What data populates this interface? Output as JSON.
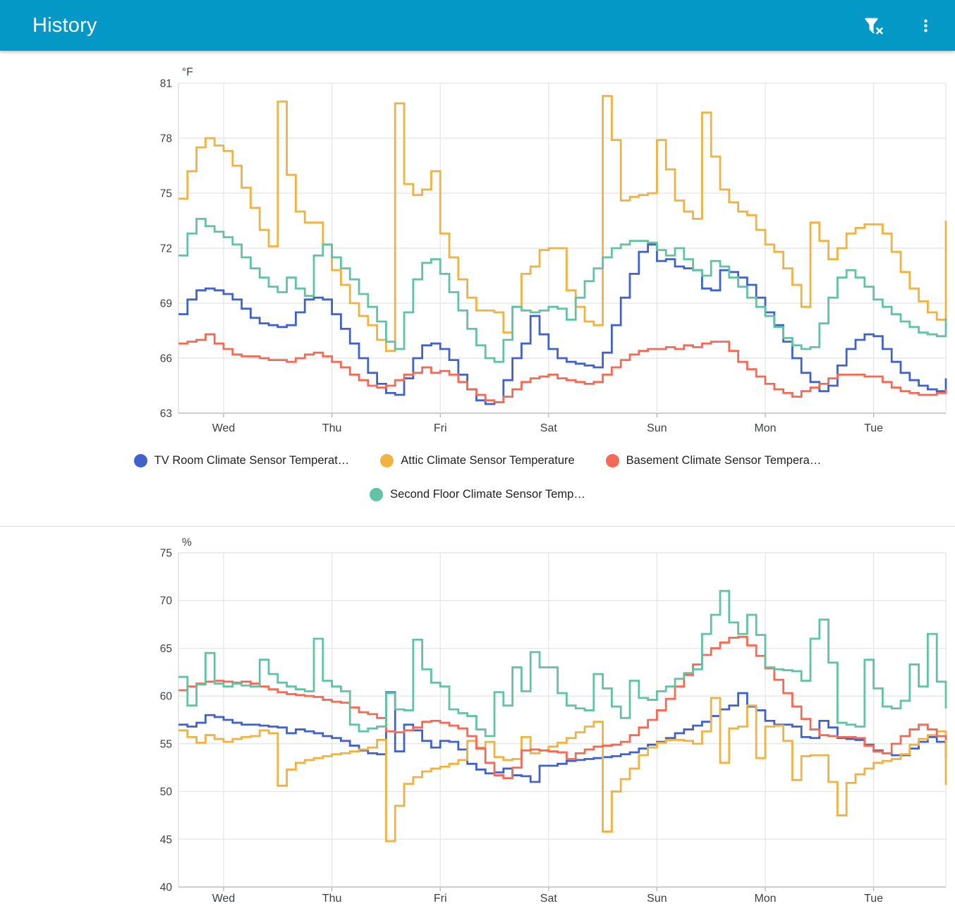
{
  "header": {
    "title": "History",
    "filter_icon": "filter-remove",
    "menu_icon": "dots-vertical",
    "bar_color": "#0398c5"
  },
  "chart_data": [
    {
      "type": "line",
      "line_style": "stepped",
      "grid": true,
      "legend_position": "bottom",
      "unit": "°F",
      "ylim": [
        63,
        81
      ],
      "y_ticks": [
        81,
        78,
        75,
        72,
        69,
        66,
        63
      ],
      "x_labels": [
        "Wed",
        "Thu",
        "Fri",
        "Sat",
        "Sun",
        "Mon",
        "Tue"
      ],
      "x_span_hours": 170,
      "day_label_hours": [
        10,
        34,
        58,
        82,
        106,
        130,
        154
      ],
      "step_hours": 2,
      "series": [
        {
          "name": "TV Room Climate Sensor Temperat…",
          "color": "#4163c9",
          "values": [
            68.4,
            69.2,
            69.7,
            69.8,
            69.7,
            69.5,
            69.2,
            68.7,
            68.2,
            67.9,
            67.8,
            67.7,
            67.8,
            68.5,
            69.2,
            69.3,
            69.2,
            68.4,
            67.6,
            66.8,
            66.0,
            65.2,
            64.6,
            64.1,
            64.0,
            64.9,
            66.0,
            66.7,
            66.8,
            66.5,
            65.9,
            65.1,
            64.3,
            63.7,
            63.5,
            63.6,
            64.8,
            66.0,
            66.8,
            68.3,
            67.3,
            66.5,
            66.0,
            65.8,
            65.7,
            65.6,
            65.5,
            66.3,
            67.8,
            69.3,
            70.6,
            71.8,
            72.2,
            71.3,
            71.4,
            71.0,
            70.9,
            70.8,
            69.8,
            69.7,
            70.8,
            70.7,
            70.4,
            70.0,
            69.3,
            68.5,
            67.8,
            66.9,
            66.0,
            65.2,
            64.7,
            64.2,
            64.5,
            65.6,
            66.5,
            67.0,
            67.3,
            67.2,
            66.5,
            65.8,
            65.2,
            64.8,
            64.5,
            64.3,
            64.2,
            64.9
          ]
        },
        {
          "name": "Attic Climate Sensor Temperature",
          "color": "#f0b342",
          "values": [
            74.7,
            76.2,
            77.5,
            78.0,
            77.6,
            77.3,
            76.5,
            75.3,
            74.2,
            73.0,
            72.1,
            80.0,
            76.0,
            74.0,
            73.4,
            73.4,
            72.2,
            70.8,
            70.0,
            69.0,
            68.3,
            67.8,
            67.0,
            66.4,
            79.9,
            75.5,
            74.9,
            75.2,
            76.2,
            72.8,
            71.5,
            70.3,
            69.3,
            68.6,
            68.6,
            68.5,
            67.4,
            68.8,
            70.6,
            71.0,
            71.9,
            72.0,
            72.0,
            69.7,
            68.8,
            68.0,
            67.8,
            80.3,
            77.9,
            74.6,
            74.8,
            74.9,
            75.0,
            77.9,
            76.3,
            74.6,
            74.0,
            73.6,
            79.4,
            77.0,
            75.2,
            74.5,
            74.0,
            73.8,
            73.0,
            72.2,
            71.8,
            70.9,
            70.0,
            68.8,
            73.4,
            72.4,
            71.4,
            72.0,
            72.8,
            73.1,
            73.3,
            73.3,
            72.8,
            71.8,
            70.7,
            69.8,
            69.1,
            68.5,
            68.1,
            73.5
          ]
        },
        {
          "name": "Basement Climate Sensor Tempera…",
          "color": "#f46a57",
          "values": [
            66.8,
            66.9,
            67.0,
            67.3,
            66.8,
            66.5,
            66.2,
            66.1,
            66.1,
            66.0,
            65.9,
            65.9,
            65.8,
            66.0,
            66.2,
            66.3,
            66.1,
            65.8,
            65.5,
            65.1,
            64.8,
            64.5,
            64.4,
            64.5,
            64.8,
            65.1,
            65.2,
            65.5,
            65.2,
            65.3,
            65.1,
            64.7,
            64.3,
            64.0,
            63.7,
            63.6,
            63.9,
            64.3,
            64.7,
            64.9,
            65.0,
            65.1,
            64.9,
            64.8,
            64.7,
            64.6,
            64.7,
            65.1,
            65.5,
            65.9,
            66.2,
            66.4,
            66.5,
            66.5,
            66.6,
            66.5,
            66.7,
            66.6,
            66.8,
            66.9,
            66.9,
            66.4,
            65.8,
            65.4,
            65.0,
            64.6,
            64.3,
            64.1,
            63.9,
            64.2,
            64.4,
            64.6,
            64.9,
            65.1,
            65.1,
            65.1,
            65.0,
            65.0,
            64.7,
            64.4,
            64.2,
            64.1,
            64.0,
            64.0,
            64.1,
            64.3
          ]
        },
        {
          "name": "Second Floor Climate Sensor Temp…",
          "color": "#61c3a3",
          "values": [
            71.6,
            72.8,
            73.6,
            73.2,
            72.9,
            72.6,
            72.2,
            71.5,
            70.9,
            70.4,
            69.9,
            69.6,
            70.4,
            69.8,
            69.4,
            71.6,
            72.2,
            71.5,
            70.9,
            70.3,
            69.5,
            68.8,
            68.0,
            66.9,
            66.5,
            68.5,
            70.3,
            71.2,
            71.4,
            70.6,
            69.6,
            68.6,
            67.6,
            66.7,
            66.0,
            65.8,
            67.0,
            68.8,
            68.6,
            68.5,
            68.6,
            68.8,
            68.7,
            68.1,
            69.3,
            70.2,
            70.9,
            71.5,
            72.0,
            72.2,
            72.4,
            72.4,
            72.3,
            71.9,
            71.6,
            72.0,
            71.4,
            70.8,
            70.5,
            71.3,
            71.0,
            70.4,
            69.9,
            69.3,
            68.8,
            68.3,
            67.7,
            67.1,
            66.7,
            66.5,
            66.6,
            67.9,
            69.3,
            70.4,
            70.8,
            70.4,
            69.9,
            69.2,
            68.8,
            68.4,
            68.0,
            67.7,
            67.4,
            67.3,
            67.2,
            68.2
          ]
        }
      ]
    },
    {
      "type": "line",
      "line_style": "stepped",
      "grid": true,
      "legend_position": "none-visible",
      "unit": "%",
      "ylim": [
        40,
        75
      ],
      "y_ticks": [
        75,
        70,
        65,
        60,
        55,
        50,
        45,
        40
      ],
      "x_labels": [
        "Wed",
        "Thu",
        "Fri",
        "Sat",
        "Sun",
        "Mon",
        "Tue"
      ],
      "x_span_hours": 170,
      "day_label_hours": [
        10,
        34,
        58,
        82,
        106,
        130,
        154
      ],
      "step_hours": 2,
      "series": [
        {
          "color": "#4163c9",
          "values": [
            57.0,
            56.8,
            57.2,
            58.0,
            57.8,
            57.5,
            57.2,
            57.0,
            57.0,
            56.9,
            56.8,
            56.7,
            56.1,
            56.5,
            56.3,
            56.1,
            55.8,
            55.6,
            55.3,
            54.8,
            54.3,
            54.0,
            53.9,
            60.4,
            54.2,
            57.0,
            56.4,
            55.3,
            54.6,
            55.3,
            55.2,
            54.4,
            52.9,
            52.3,
            51.9,
            52.0,
            52.4,
            51.7,
            51.6,
            51.0,
            52.7,
            52.7,
            52.9,
            53.2,
            53.3,
            53.4,
            53.5,
            53.6,
            53.7,
            53.9,
            54.1,
            54.5,
            54.9,
            55.2,
            55.6,
            56.1,
            56.5,
            56.9,
            57.3,
            57.9,
            58.6,
            59.0,
            60.3,
            58.9,
            58.5,
            57.4,
            57.0,
            57.0,
            56.8,
            55.7,
            55.6,
            57.4,
            56.7,
            55.6,
            55.5,
            55.4,
            54.9,
            54.3,
            54.0,
            53.8,
            53.8,
            54.5,
            55.2,
            55.7,
            55.2,
            53.5
          ]
        },
        {
          "color": "#f0b342",
          "values": [
            56.4,
            55.7,
            55.1,
            55.9,
            55.5,
            55.2,
            55.5,
            55.7,
            55.8,
            56.4,
            56.1,
            50.6,
            52.3,
            53.0,
            53.3,
            53.5,
            53.7,
            53.9,
            54.0,
            54.2,
            54.4,
            54.6,
            55.4,
            44.8,
            48.5,
            50.8,
            51.5,
            52.1,
            52.4,
            52.6,
            52.9,
            53.3,
            55.3,
            54.6,
            55.2,
            53.6,
            53.3,
            53.4,
            55.7,
            54.0,
            54.3,
            54.7,
            55.1,
            55.6,
            56.2,
            56.8,
            57.3,
            45.8,
            50.0,
            51.3,
            52.4,
            53.8,
            54.6,
            55.1,
            55.4,
            55.4,
            55.3,
            55.0,
            56.3,
            59.8,
            53.0,
            56.6,
            56.8,
            59.0,
            53.5,
            56.8,
            56.9,
            55.3,
            51.2,
            53.7,
            53.8,
            53.8,
            51.0,
            47.5,
            50.9,
            51.8,
            52.4,
            53.0,
            53.2,
            53.4,
            53.9,
            54.9,
            55.5,
            55.9,
            56.3,
            50.7
          ]
        },
        {
          "color": "#f46a57",
          "values": [
            60.6,
            61.0,
            61.3,
            61.5,
            61.6,
            61.5,
            61.4,
            61.5,
            61.3,
            61.0,
            60.7,
            60.4,
            60.2,
            60.1,
            60.0,
            59.9,
            59.6,
            59.4,
            59.3,
            58.8,
            58.3,
            58.1,
            57.7,
            56.3,
            56.2,
            56.4,
            56.7,
            57.3,
            57.4,
            57.2,
            56.9,
            56.6,
            55.8,
            54.5,
            53.0,
            51.7,
            51.4,
            52.5,
            54.3,
            54.4,
            54.3,
            54.2,
            54.1,
            53.4,
            54.0,
            54.4,
            54.7,
            54.8,
            54.9,
            55.2,
            55.9,
            56.7,
            57.5,
            58.5,
            59.7,
            61.0,
            62.2,
            63.3,
            64.3,
            65.0,
            65.6,
            66.1,
            66.2,
            65.3,
            64.2,
            62.9,
            61.7,
            60.3,
            58.9,
            57.6,
            56.5,
            55.9,
            55.8,
            55.7,
            55.7,
            55.6,
            54.8,
            54.2,
            54.0,
            55.0,
            55.8,
            56.5,
            57.0,
            56.5,
            55.8,
            55.4
          ]
        },
        {
          "color": "#61c3a3",
          "values": [
            62.0,
            59.0,
            61.2,
            64.5,
            61.3,
            61.0,
            61.3,
            61.1,
            61.0,
            63.8,
            62.3,
            61.4,
            61.0,
            60.7,
            60.5,
            66.0,
            61.6,
            61.0,
            60.5,
            57.0,
            56.3,
            56.6,
            56.8,
            60.3,
            58.6,
            58.5,
            65.9,
            62.8,
            61.4,
            61.0,
            58.6,
            58.2,
            57.9,
            56.5,
            55.8,
            60.4,
            59.0,
            63.0,
            60.5,
            64.6,
            63.0,
            63.0,
            60.3,
            59.0,
            58.7,
            58.5,
            62.3,
            60.8,
            58.9,
            57.7,
            61.6,
            59.8,
            59.6,
            60.5,
            61.0,
            61.8,
            62.4,
            62.8,
            66.5,
            68.5,
            71.0,
            67.7,
            66.5,
            68.5,
            66.4,
            63.0,
            62.8,
            62.7,
            62.6,
            61.6,
            66.0,
            68.0,
            63.5,
            57.2,
            57.0,
            56.8,
            63.8,
            60.8,
            58.9,
            58.7,
            59.5,
            63.3,
            61.0,
            66.5,
            61.5,
            58.7
          ]
        }
      ]
    }
  ]
}
